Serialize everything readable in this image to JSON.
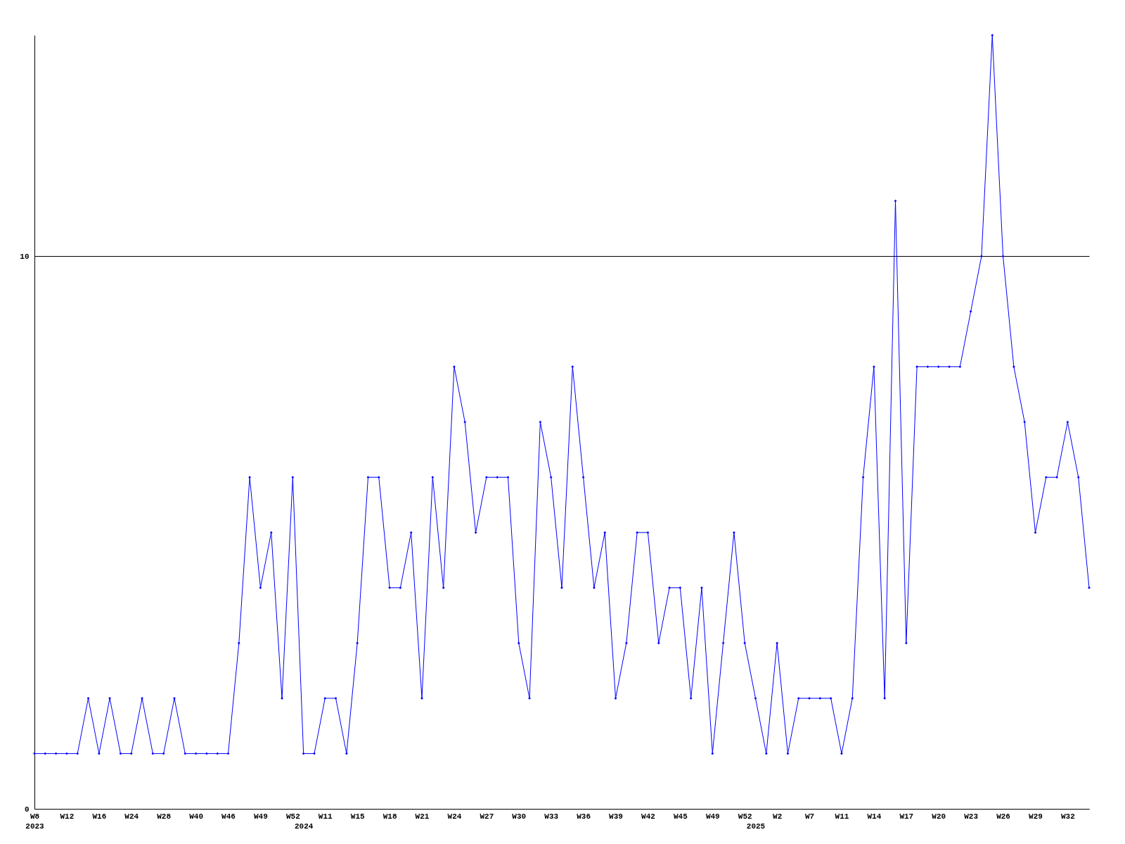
{
  "chart_data": {
    "type": "line",
    "categories": [
      "W8\n2023",
      null,
      null,
      "W12",
      null,
      null,
      "W16",
      null,
      null,
      "W24",
      null,
      null,
      "W28",
      null,
      null,
      "W40",
      null,
      null,
      "W46",
      null,
      null,
      "W49",
      null,
      null,
      "W52",
      "\n2024",
      null,
      "W11",
      null,
      null,
      "W15",
      null,
      null,
      "W18",
      null,
      null,
      "W21",
      null,
      null,
      "W24",
      null,
      null,
      "W27",
      null,
      null,
      "W30",
      null,
      null,
      "W33",
      null,
      null,
      "W36",
      null,
      null,
      "W39",
      null,
      null,
      "W42",
      null,
      null,
      "W45",
      null,
      null,
      "W49",
      null,
      null,
      "W52",
      "\n2025",
      null,
      "W2",
      null,
      null,
      "W7",
      null,
      null,
      "W11",
      null,
      null,
      "W14",
      null,
      null,
      "W17",
      null,
      null,
      "W20",
      null,
      null,
      "W23",
      null,
      null,
      "W26",
      null,
      null,
      "W29",
      null,
      null,
      "W32",
      null,
      null
    ],
    "series": [
      {
        "color": "#0000ff",
        "values": [
          1,
          1,
          1,
          1,
          1,
          2,
          1,
          2,
          1,
          1,
          2,
          1,
          1,
          2,
          1,
          1,
          1,
          1,
          1,
          3,
          6,
          4,
          5,
          2,
          6,
          1,
          1,
          2,
          2,
          1,
          3,
          6,
          6,
          4,
          4,
          5,
          2,
          6,
          4,
          8,
          7,
          5,
          6,
          6,
          6,
          3,
          2,
          7,
          6,
          4,
          8,
          6,
          4,
          5,
          2,
          3,
          5,
          5,
          3,
          4,
          4,
          2,
          4,
          1,
          3,
          5,
          3,
          2,
          1,
          3,
          1,
          2,
          2,
          2,
          2,
          1,
          2,
          6,
          8,
          2,
          11,
          3,
          8,
          8,
          8,
          8,
          8,
          9,
          10,
          14,
          10,
          8,
          7,
          5,
          6,
          6,
          7,
          6,
          4
        ]
      }
    ],
    "ylim": [
      0,
      14
    ],
    "yticks": [
      0,
      10
    ],
    "grid": "y",
    "marker": "diamond",
    "line_style": "solid"
  }
}
